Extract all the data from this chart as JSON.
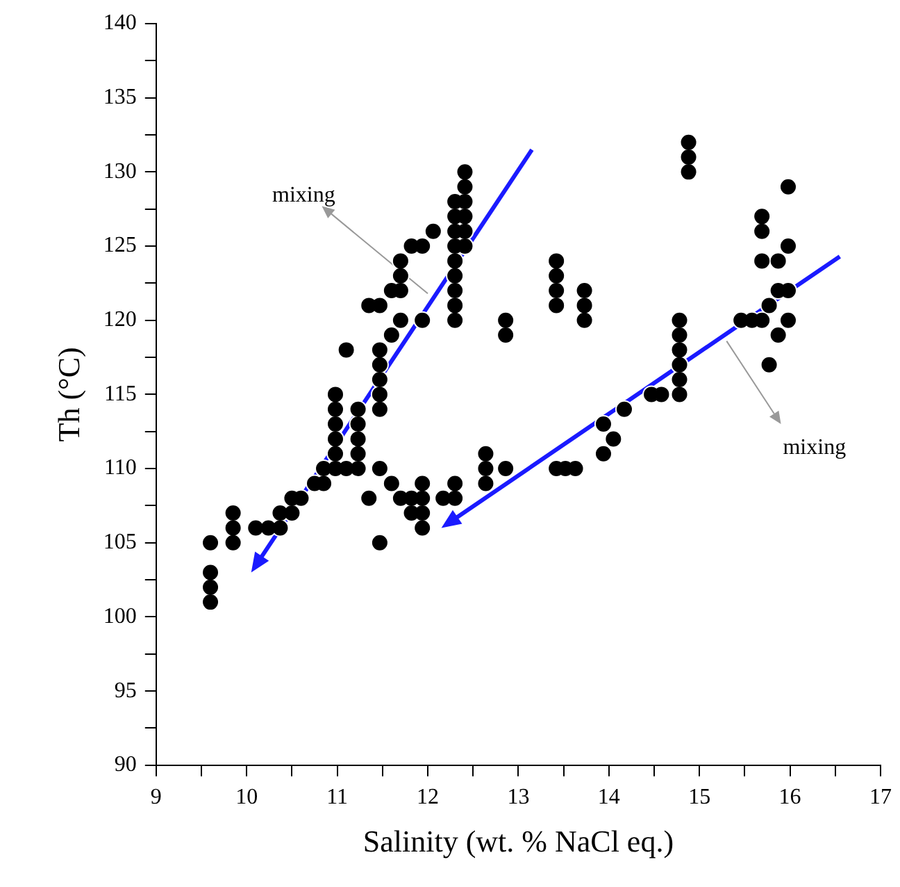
{
  "chart_data": {
    "type": "scatter",
    "xlabel": "Salinity (wt. % NaCl eq.)",
    "ylabel": "Th (°C)",
    "xlim": [
      9,
      17
    ],
    "ylim": [
      90,
      140
    ],
    "xticks": [
      9,
      {
        "value": 9.5,
        "label": null
      },
      10,
      {
        "value": 10.5,
        "label": null
      },
      11,
      {
        "value": 11.5,
        "label": null
      },
      12,
      {
        "value": 12.5,
        "label": null
      },
      13,
      {
        "value": 13.5,
        "label": null
      },
      14,
      {
        "value": 14.5,
        "label": null
      },
      15,
      {
        "value": 15.5,
        "label": null
      },
      16,
      {
        "value": 16.5,
        "label": null
      },
      17
    ],
    "yticks": [
      90,
      {
        "value": 92.5,
        "label": null
      },
      95,
      {
        "value": 97.5,
        "label": null
      },
      100,
      {
        "value": 102.5,
        "label": null
      },
      105,
      {
        "value": 107.5,
        "label": null
      },
      110,
      {
        "value": 112.5,
        "label": null
      },
      115,
      {
        "value": 117.5,
        "label": null
      },
      120,
      {
        "value": 122.5,
        "label": null
      },
      125,
      {
        "value": 127.5,
        "label": null
      },
      130,
      {
        "value": 132.5,
        "label": null
      },
      135,
      {
        "value": 137.5,
        "label": null
      },
      140
    ],
    "grid": false,
    "legend": false,
    "marker": "circle",
    "series": [
      {
        "color": "#000000",
        "x": [
          9.6,
          9.6,
          9.6,
          9.6,
          9.85,
          9.85,
          9.85,
          10.1,
          10.24,
          10.37,
          10.37,
          10.5,
          10.5,
          10.6,
          10.75,
          10.85,
          10.85,
          10.98,
          10.98,
          10.98,
          10.98,
          10.98,
          10.98,
          11.1,
          11.1,
          11.23,
          11.23,
          11.23,
          11.23,
          11.23,
          11.35,
          11.35,
          11.47,
          11.47,
          11.47,
          11.47,
          11.47,
          11.47,
          11.47,
          11.47,
          11.6,
          11.6,
          11.6,
          11.7,
          11.7,
          11.7,
          11.7,
          11.7,
          11.82,
          11.82,
          11.82,
          11.94,
          11.94,
          11.94,
          11.94,
          11.94,
          11.94,
          12.06,
          12.17,
          12.3,
          12.3,
          12.3,
          12.3,
          12.3,
          12.3,
          12.3,
          12.3,
          12.3,
          12.3,
          12.3,
          12.41,
          12.41,
          12.41,
          12.41,
          12.41,
          12.41,
          12.64,
          12.64,
          12.64,
          12.86,
          12.86,
          12.86,
          13.42,
          13.42,
          13.42,
          13.42,
          13.42,
          13.52,
          13.63,
          13.73,
          13.73,
          13.73,
          13.94,
          13.94,
          14.05,
          14.17,
          14.47,
          14.58,
          14.78,
          14.78,
          14.78,
          14.78,
          14.78,
          14.78,
          14.88,
          14.88,
          14.88,
          15.46,
          15.58,
          15.69,
          15.69,
          15.69,
          15.69,
          15.77,
          15.77,
          15.87,
          15.87,
          15.87,
          15.98,
          15.98,
          15.98,
          15.98
        ],
        "values": [
          101,
          102,
          103,
          105,
          105,
          106,
          107,
          106,
          106,
          106,
          107,
          107,
          108,
          108,
          109,
          109,
          110,
          110,
          111,
          112,
          113,
          114,
          115,
          110,
          118,
          110,
          111,
          112,
          113,
          114,
          108,
          121,
          105,
          110,
          114,
          115,
          116,
          117,
          118,
          121,
          109,
          119,
          122,
          108,
          120,
          122,
          123,
          124,
          107,
          108,
          125,
          106,
          107,
          108,
          109,
          120,
          125,
          126,
          108,
          108,
          109,
          120,
          121,
          122,
          123,
          124,
          125,
          126,
          127,
          128,
          125,
          126,
          127,
          128,
          129,
          130,
          109,
          110,
          111,
          110,
          119,
          120,
          110,
          121,
          122,
          123,
          124,
          110,
          110,
          120,
          121,
          122,
          111,
          113,
          112,
          114,
          115,
          115,
          115,
          116,
          117,
          118,
          119,
          120,
          130,
          131,
          132,
          120,
          120,
          120,
          124,
          126,
          127,
          117,
          121,
          119,
          122,
          124,
          120,
          122,
          125,
          129
        ]
      }
    ],
    "annotations": [
      "mixing",
      "mixing"
    ]
  }
}
